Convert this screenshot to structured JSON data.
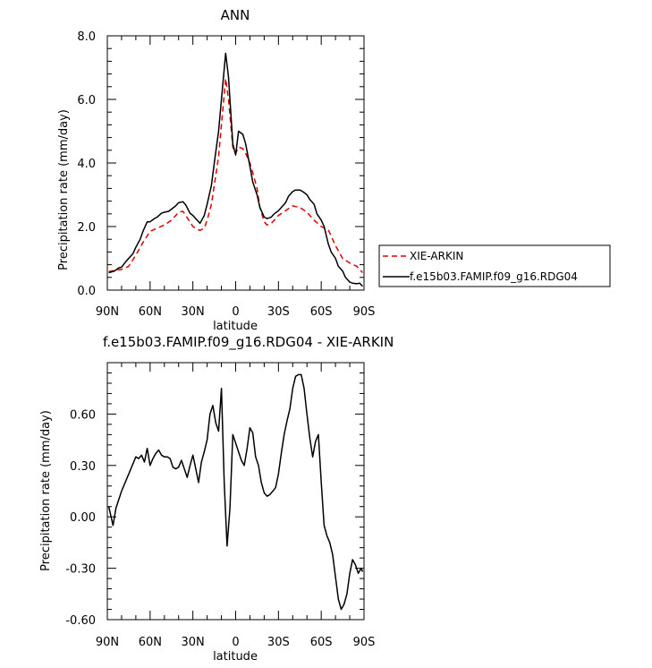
{
  "chart_data": [
    {
      "type": "line",
      "title": "ANN",
      "xlabel": "latitude",
      "ylabel": "Precipitation rate (mm/day)",
      "xlim": [
        90,
        -90
      ],
      "ylim": [
        0,
        8
      ],
      "x_ticks": [
        90,
        60,
        30,
        0,
        -30,
        -60,
        -90
      ],
      "x_tick_labels": [
        "90N",
        "60N",
        "30N",
        "0",
        "30S",
        "60S",
        "90S"
      ],
      "y_ticks": [
        0,
        2,
        4,
        6,
        8
      ],
      "y_tick_labels": [
        "0.0",
        "2.0",
        "4.0",
        "6.0",
        "8.0"
      ],
      "legend_position": "right",
      "series": [
        {
          "name": "XIE-ARKIN",
          "color": "#e00000",
          "dash": "dashed",
          "x": [
            89,
            85,
            80,
            75,
            70,
            65,
            60,
            55,
            50,
            45,
            40,
            37,
            35,
            30,
            27,
            25,
            22,
            20,
            17,
            15,
            12,
            10,
            7,
            5,
            2,
            0,
            -2,
            -5,
            -7,
            -10,
            -12,
            -15,
            -17,
            -20,
            -22,
            -25,
            -27,
            -30,
            -35,
            -40,
            -45,
            -50,
            -55,
            -60,
            -65,
            -70,
            -75,
            -80,
            -85,
            -89
          ],
          "values": [
            0.58,
            0.62,
            0.65,
            0.75,
            1.1,
            1.5,
            1.85,
            1.95,
            2.05,
            2.2,
            2.45,
            2.48,
            2.35,
            2.0,
            1.92,
            1.88,
            1.95,
            2.2,
            2.7,
            3.3,
            4.2,
            5.2,
            6.65,
            6.0,
            4.5,
            4.3,
            4.5,
            4.45,
            4.3,
            4.0,
            3.7,
            3.2,
            2.6,
            2.15,
            2.05,
            2.1,
            2.2,
            2.35,
            2.5,
            2.65,
            2.6,
            2.45,
            2.2,
            2.0,
            1.9,
            1.4,
            1.0,
            0.85,
            0.75,
            0.55
          ]
        },
        {
          "name": "f.e15b03.FAMIP.f09_g16.RDG04",
          "color": "#000000",
          "dash": "solid",
          "x": [
            89,
            85,
            82,
            80,
            77,
            75,
            72,
            70,
            67,
            65,
            62,
            60,
            57,
            55,
            52,
            50,
            47,
            45,
            42,
            40,
            37,
            35,
            32,
            30,
            27,
            25,
            22,
            20,
            17,
            15,
            12,
            10,
            7,
            5,
            2,
            0,
            -2,
            -5,
            -7,
            -10,
            -12,
            -15,
            -17,
            -20,
            -22,
            -25,
            -27,
            -30,
            -32,
            -35,
            -37,
            -40,
            -42,
            -45,
            -47,
            -50,
            -52,
            -55,
            -57,
            -60,
            -62,
            -65,
            -67,
            -70,
            -72,
            -75,
            -77,
            -80,
            -82,
            -85,
            -87,
            -89
          ],
          "values": [
            0.55,
            0.6,
            0.7,
            0.72,
            0.9,
            1.0,
            1.15,
            1.35,
            1.6,
            1.85,
            2.15,
            2.15,
            2.25,
            2.3,
            2.42,
            2.45,
            2.48,
            2.55,
            2.65,
            2.75,
            2.78,
            2.68,
            2.42,
            2.35,
            2.2,
            2.1,
            2.35,
            2.7,
            3.3,
            4.0,
            5.0,
            6.0,
            7.45,
            6.7,
            4.6,
            4.25,
            5.0,
            4.9,
            4.6,
            3.9,
            3.4,
            3.0,
            2.6,
            2.3,
            2.25,
            2.3,
            2.4,
            2.5,
            2.6,
            2.75,
            2.95,
            3.1,
            3.15,
            3.15,
            3.1,
            3.0,
            2.85,
            2.7,
            2.4,
            2.2,
            2.0,
            1.45,
            1.2,
            1.0,
            0.75,
            0.6,
            0.4,
            0.25,
            0.22,
            0.2,
            0.22,
            0.12
          ]
        }
      ]
    },
    {
      "type": "line",
      "title": "f.e15b03.FAMIP.f09_g16.RDG04 - XIE-ARKIN",
      "xlabel": "latitude",
      "ylabel": "Precipitation rate (mm/day)",
      "xlim": [
        90,
        -90
      ],
      "ylim": [
        -0.6,
        0.9
      ],
      "x_ticks": [
        90,
        60,
        30,
        0,
        -30,
        -60,
        -90
      ],
      "x_tick_labels": [
        "90N",
        "60N",
        "30N",
        "0",
        "30S",
        "60S",
        "90S"
      ],
      "y_ticks": [
        -0.6,
        -0.3,
        0,
        0.3,
        0.6
      ],
      "y_tick_labels": [
        "-0.60",
        "-0.30",
        "0.00",
        "0.30",
        "0.60"
      ],
      "series": [
        {
          "color": "#000000",
          "dash": "solid",
          "x": [
            89,
            86,
            84,
            80,
            75,
            70,
            68,
            66,
            64,
            62,
            60,
            58,
            56,
            54,
            52,
            50,
            48,
            46,
            44,
            42,
            40,
            38,
            36,
            34,
            32,
            30,
            28,
            26,
            24,
            22,
            20,
            18,
            16,
            14,
            12,
            10,
            8,
            6,
            4,
            2,
            0,
            -2,
            -4,
            -6,
            -8,
            -10,
            -12,
            -14,
            -16,
            -18,
            -20,
            -22,
            -24,
            -26,
            -28,
            -30,
            -32,
            -34,
            -36,
            -38,
            -40,
            -42,
            -44,
            -46,
            -48,
            -50,
            -52,
            -54,
            -56,
            -58,
            -60,
            -62,
            -64,
            -66,
            -68,
            -70,
            -72,
            -74,
            -76,
            -78,
            -80,
            -82,
            -84,
            -86,
            -88,
            -89
          ],
          "values": [
            0.06,
            -0.05,
            0.05,
            0.15,
            0.25,
            0.35,
            0.34,
            0.36,
            0.32,
            0.4,
            0.3,
            0.34,
            0.37,
            0.39,
            0.36,
            0.35,
            0.35,
            0.34,
            0.29,
            0.28,
            0.29,
            0.33,
            0.28,
            0.23,
            0.3,
            0.36,
            0.28,
            0.2,
            0.32,
            0.38,
            0.45,
            0.6,
            0.65,
            0.55,
            0.5,
            0.75,
            0.2,
            -0.17,
            0.05,
            0.48,
            0.43,
            0.38,
            0.33,
            0.3,
            0.4,
            0.52,
            0.49,
            0.35,
            0.3,
            0.2,
            0.14,
            0.12,
            0.13,
            0.15,
            0.17,
            0.25,
            0.37,
            0.48,
            0.56,
            0.63,
            0.75,
            0.82,
            0.83,
            0.83,
            0.75,
            0.6,
            0.46,
            0.35,
            0.44,
            0.48,
            0.2,
            -0.05,
            -0.11,
            -0.15,
            -0.22,
            -0.35,
            -0.48,
            -0.54,
            -0.51,
            -0.45,
            -0.33,
            -0.25,
            -0.28,
            -0.33,
            -0.3,
            -0.32
          ]
        }
      ]
    }
  ]
}
